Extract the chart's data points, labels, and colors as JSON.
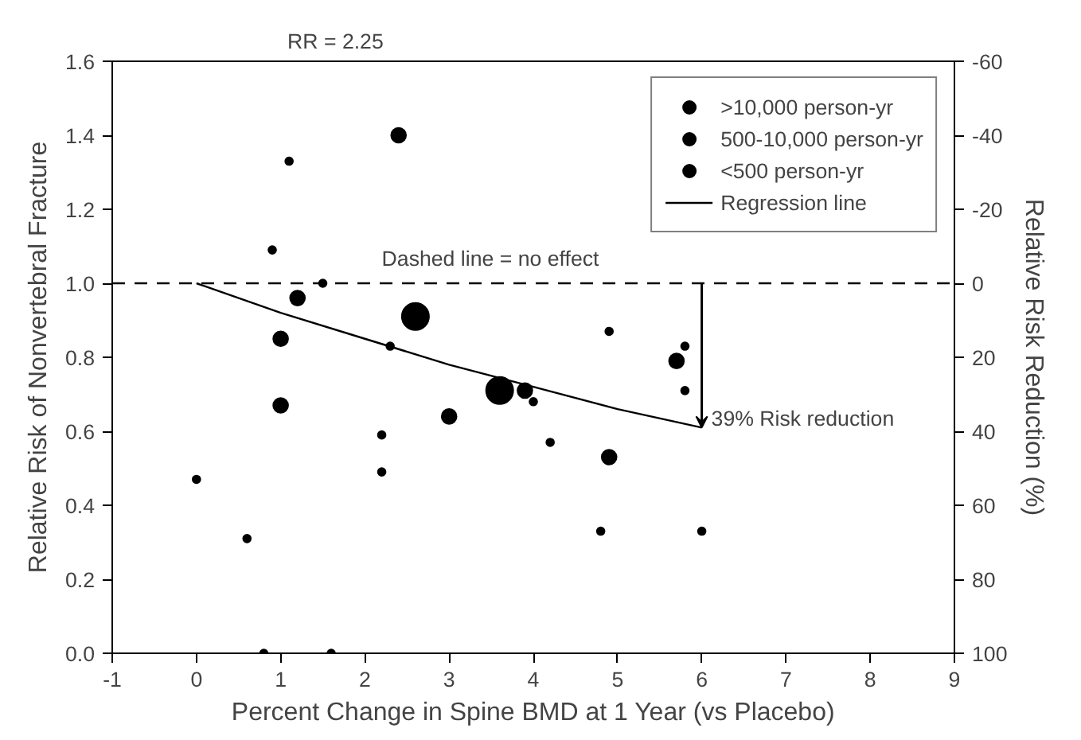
{
  "chart_data": {
    "type": "bubble",
    "xlabel": "Percent Change in Spine BMD at 1 Year (vs Placebo)",
    "ylabel": "Relative Risk of Nonvertebral Fracture",
    "y2label": "Relative Risk Reduction (%)",
    "xlim": [
      -1,
      9
    ],
    "xticks": [
      -1,
      0,
      1,
      2,
      3,
      4,
      5,
      6,
      7,
      8,
      9
    ],
    "ylim": [
      0,
      1.6
    ],
    "yticks": [
      {
        "value": 0,
        "label": "0.0"
      },
      {
        "value": 0.2,
        "label": "0.2"
      },
      {
        "value": 0.4,
        "label": "0.4"
      },
      {
        "value": 0.6,
        "label": "0.6"
      },
      {
        "value": 0.8,
        "label": "0.8"
      },
      {
        "value": 1.0,
        "label": "1.0"
      },
      {
        "value": 1.2,
        "label": "1.2"
      },
      {
        "value": 1.4,
        "label": "1.4"
      },
      {
        "value": 1.6,
        "label": "1.6"
      }
    ],
    "y2lim": [
      100,
      -60
    ],
    "y2ticks": [
      -60,
      -40,
      -20,
      0,
      20,
      40,
      60,
      80,
      100
    ],
    "grid": false,
    "legend": "top right",
    "marker": "circle",
    "series": [
      {
        "name": ">10,000 person-yr",
        "color": "#000000",
        "x": [
          2.6,
          3.6
        ],
        "values": [
          0.91,
          0.71
        ],
        "sizes": [
          1,
          1
        ]
      },
      {
        "name": "500-10,000 person-yr",
        "color": "#000000",
        "x": [
          1.0,
          1.0,
          1.2,
          2.4,
          3.0,
          3.9,
          4.9,
          5.7
        ],
        "values": [
          0.85,
          0.67,
          0.96,
          1.4,
          0.64,
          0.71,
          0.53,
          0.79
        ],
        "sizes": [
          0.3,
          0.3,
          0.3,
          0.3,
          0.3,
          0.3,
          0.3,
          0.3
        ]
      },
      {
        "name": "<500 person-yr",
        "color": "#000000",
        "x": [
          0,
          0.6,
          0.8,
          1.6,
          2.2,
          2.2,
          2.3,
          4.0,
          4.2,
          0.9,
          1.1,
          1.5,
          4.9,
          5.8,
          5.8,
          4.8,
          6.0
        ],
        "values": [
          0.47,
          0.31,
          0,
          0,
          0.59,
          0.49,
          0.83,
          0.68,
          0.57,
          1.09,
          1.33,
          1.0,
          0.87,
          0.83,
          0.71,
          0.33,
          0.33
        ],
        "sizes": [
          0.08,
          0.08,
          0.08,
          0.08,
          0.08,
          0.08,
          0.08,
          0.08,
          0.08,
          0.08,
          0.08,
          0.08,
          0.08,
          0.08,
          0.08,
          0.08,
          0.08
        ]
      },
      {
        "name": "Regression line",
        "type": "line",
        "color": "#000000",
        "line_style": "solid",
        "marker": "none",
        "x": [
          0,
          1,
          2,
          3,
          4,
          5,
          6
        ],
        "values": [
          1.0,
          0.92,
          0.85,
          0.78,
          0.72,
          0.66,
          0.61
        ]
      }
    ],
    "ref_lines": [
      {
        "axis": "y",
        "value": 1.0,
        "label": "Dashed line = no effect",
        "line_style": "dashed",
        "color": "#000000"
      }
    ],
    "annotations": [
      {
        "text": "39% Risk reduction",
        "x": 6,
        "y": 0.61
      },
      "RR = 2.25"
    ]
  }
}
